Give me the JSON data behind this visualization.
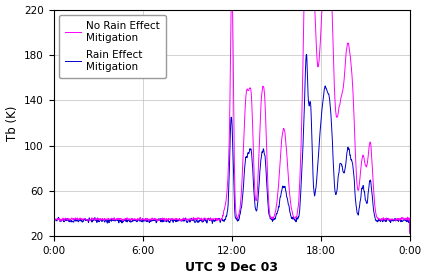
{
  "title": "",
  "xlabel": "UTC 9 Dec 03",
  "ylabel": "Tb (K)",
  "ylim": [
    20,
    220
  ],
  "xlim": [
    0,
    1440
  ],
  "xtick_positions": [
    0,
    360,
    720,
    1080,
    1440
  ],
  "xtick_labels": [
    "0:00",
    "6:00",
    "12:00",
    "18:00",
    "0:00"
  ],
  "ytick_positions": [
    20,
    60,
    100,
    140,
    180,
    220
  ],
  "legend_labels": [
    "No Rain Effect\nMitigation",
    "Rain Effect\nMitigation"
  ],
  "line1_color": "#FF00FF",
  "line2_color": "#0000CC",
  "background_color": "#FFFFFF",
  "grid_color": "#C0C0C0",
  "linewidth": 0.7
}
